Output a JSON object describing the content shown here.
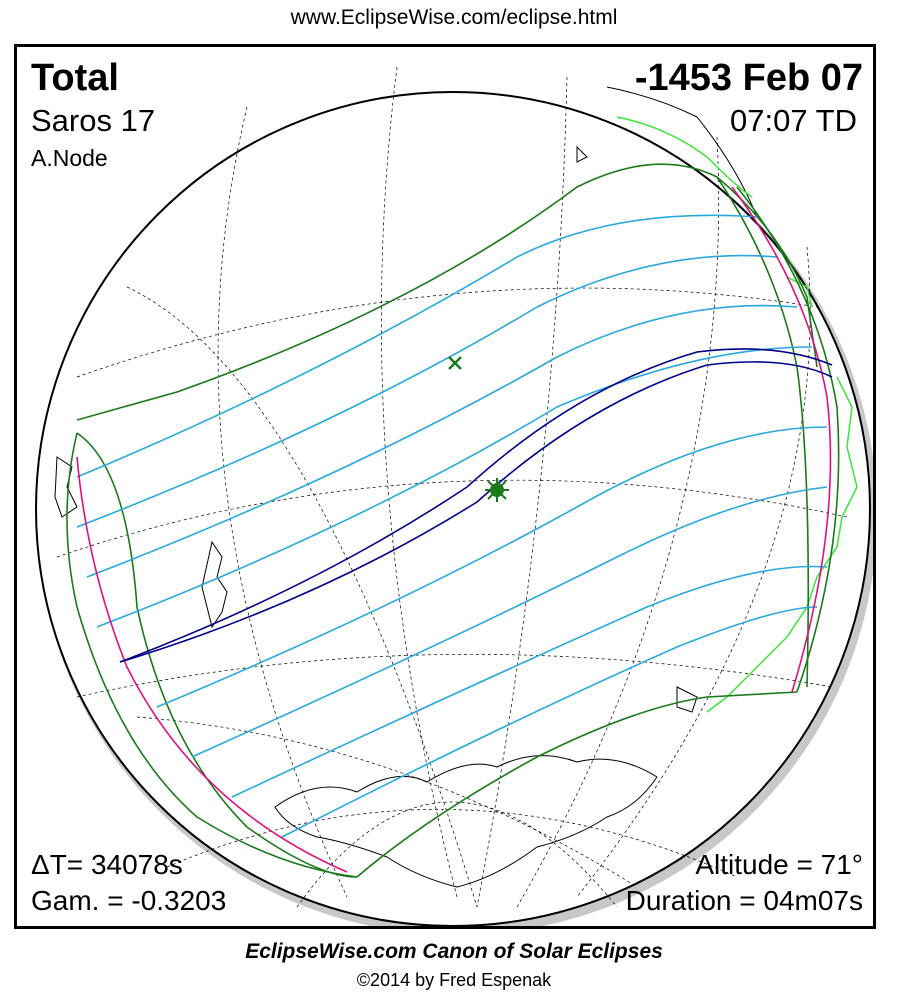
{
  "header": {
    "url": "www.EclipseWise.com/eclipse.html"
  },
  "eclipse": {
    "type": "Total",
    "date": "-1453 Feb 07",
    "saros": "Saros  17",
    "time": "07:07 TD",
    "node": "A.Node",
    "delta_t": "ΔT=  34078s",
    "gamma": "Gam. = -0.3203",
    "altitude": "Altitude = 71°",
    "duration": "Duration = 04m07s"
  },
  "colors": {
    "penumbra_limits": "#1a7a1a",
    "penumbral_contours": "#29a8e0",
    "totality_path": "#00008b",
    "rise_set_curves": "#e0117f",
    "ancient_coast": "#39e639",
    "coastline": "#000000"
  },
  "markers": {
    "greatest_eclipse": "star-icon",
    "subsolar_point": "cross-icon"
  },
  "footer": {
    "title": "EclipseWise.com Canon of Solar Eclipses",
    "copyright": "©2014 by Fred Espenak"
  }
}
